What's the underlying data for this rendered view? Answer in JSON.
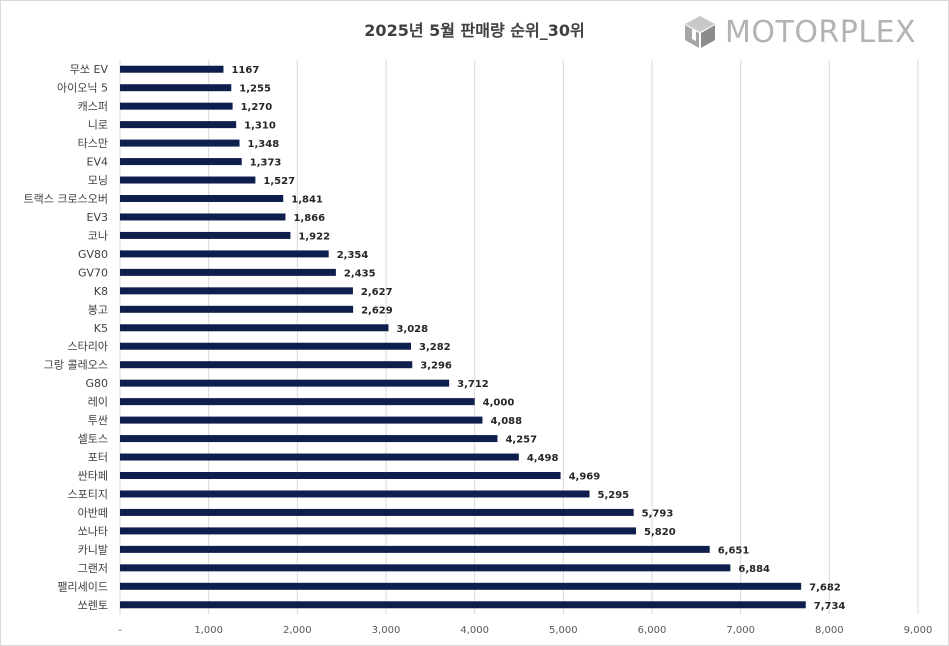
{
  "brand": {
    "name": "MOTORPLEX",
    "icon": "motorplex-cube-logo-icon"
  },
  "chart_data": {
    "type": "bar",
    "orientation": "horizontal",
    "title": "2025년 5월 판매량 순위_30위",
    "xlabel": "",
    "ylabel": "",
    "xlim": [
      0,
      9000
    ],
    "grid": true,
    "legend": "none",
    "bar_color": "#0f1f4d",
    "grid_color": "#d9d9d9",
    "x_tick_labels": [
      "-",
      "1,000",
      "2,000",
      "3,000",
      "4,000",
      "5,000",
      "6,000",
      "7,000",
      "8,000",
      "9,000"
    ],
    "categories": [
      "무쏘 EV",
      "아이오닉 5",
      "캐스퍼",
      "니로",
      "타스만",
      "EV4",
      "모닝",
      "트랙스 크로스오버",
      "EV3",
      "코나",
      "GV80",
      "GV70",
      "K8",
      "봉고",
      "K5",
      "스타리아",
      "그랑 콜레오스",
      "G80",
      "레이",
      "투싼",
      "셀토스",
      "포터",
      "싼타페",
      "스포티지",
      "아반떼",
      "쏘나타",
      "카니발",
      "그랜저",
      "팰리세이드",
      "쏘렌토"
    ],
    "values": [
      1167,
      1255,
      1270,
      1310,
      1348,
      1373,
      1527,
      1841,
      1866,
      1922,
      2354,
      2435,
      2627,
      2629,
      3028,
      3282,
      3296,
      3712,
      4000,
      4088,
      4257,
      4498,
      4969,
      5295,
      5793,
      5820,
      6651,
      6884,
      7682,
      7734
    ],
    "data_labels": [
      "1167",
      "1,255",
      "1,270",
      "1,310",
      "1,348",
      "1,373",
      "1,527",
      "1,841",
      "1,866",
      "1,922",
      "2,354",
      "2,435",
      "2,627",
      "2,629",
      "3,028",
      "3,282",
      "3,296",
      "3,712",
      "4,000",
      "4,088",
      "4,257",
      "4,498",
      "4,969",
      "5,295",
      "5,793",
      "5,820",
      "6,651",
      "6,884",
      "7,682",
      "7,734"
    ]
  }
}
